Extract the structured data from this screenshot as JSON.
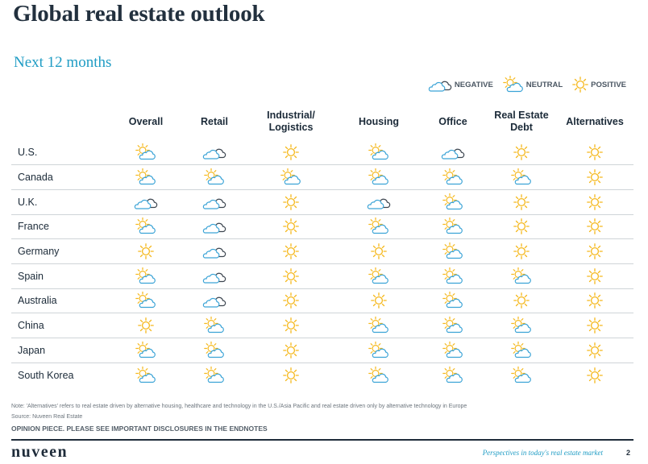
{
  "title": "Global real estate outlook",
  "subtitle": "Next 12 months",
  "colors": {
    "title": "#22303e",
    "accent": "#1f9cc4",
    "sun": "#f5b81c",
    "cloud_blue": "#3aa3d6",
    "cloud_dark": "#3d4650"
  },
  "legend": [
    {
      "label": "NEGATIVE",
      "icon": "cloud-icon"
    },
    {
      "label": "NEUTRAL",
      "icon": "sun-behind-cloud-icon"
    },
    {
      "label": "POSITIVE",
      "icon": "sun-icon"
    }
  ],
  "table": {
    "columns": [
      "Overall",
      "Retail",
      "Industrial/\nLogistics",
      "Housing",
      "Office",
      "Real Estate\nDebt",
      "Alternatives"
    ],
    "rows": [
      {
        "country": "U.S.",
        "ratings": [
          "neutral",
          "negative",
          "positive",
          "neutral",
          "negative",
          "positive",
          "positive"
        ]
      },
      {
        "country": "Canada",
        "ratings": [
          "neutral",
          "neutral",
          "neutral",
          "neutral",
          "neutral",
          "neutral",
          "positive"
        ]
      },
      {
        "country": "U.K.",
        "ratings": [
          "negative",
          "negative",
          "positive",
          "negative",
          "neutral",
          "positive",
          "positive"
        ]
      },
      {
        "country": "France",
        "ratings": [
          "neutral",
          "negative",
          "positive",
          "neutral",
          "neutral",
          "positive",
          "positive"
        ]
      },
      {
        "country": "Germany",
        "ratings": [
          "positive",
          "negative",
          "positive",
          "positive",
          "neutral",
          "positive",
          "positive"
        ]
      },
      {
        "country": "Spain",
        "ratings": [
          "neutral",
          "negative",
          "positive",
          "neutral",
          "neutral",
          "neutral",
          "positive"
        ]
      },
      {
        "country": "Australia",
        "ratings": [
          "neutral",
          "negative",
          "positive",
          "positive",
          "neutral",
          "positive",
          "positive"
        ]
      },
      {
        "country": "China",
        "ratings": [
          "positive",
          "neutral",
          "positive",
          "neutral",
          "neutral",
          "neutral",
          "positive"
        ]
      },
      {
        "country": "Japan",
        "ratings": [
          "neutral",
          "neutral",
          "positive",
          "neutral",
          "neutral",
          "neutral",
          "positive"
        ]
      },
      {
        "country": "South Korea",
        "ratings": [
          "neutral",
          "neutral",
          "positive",
          "neutral",
          "neutral",
          "neutral",
          "positive"
        ]
      }
    ]
  },
  "footer": {
    "note": "Note: 'Alternatives' refers to real estate driven by alternative housing, healthcare and technology in the U.S./Asia Pacific and real estate driven only by alternative technology in Europe",
    "source": "Source: Nuveen Real Estate",
    "disclaimer": "OPINION PIECE. PLEASE SEE IMPORTANT DISCLOSURES IN THE ENDNOTES",
    "logo": "nuveen",
    "tagline": "Perspectives in today's real estate market",
    "page_number": "2"
  }
}
